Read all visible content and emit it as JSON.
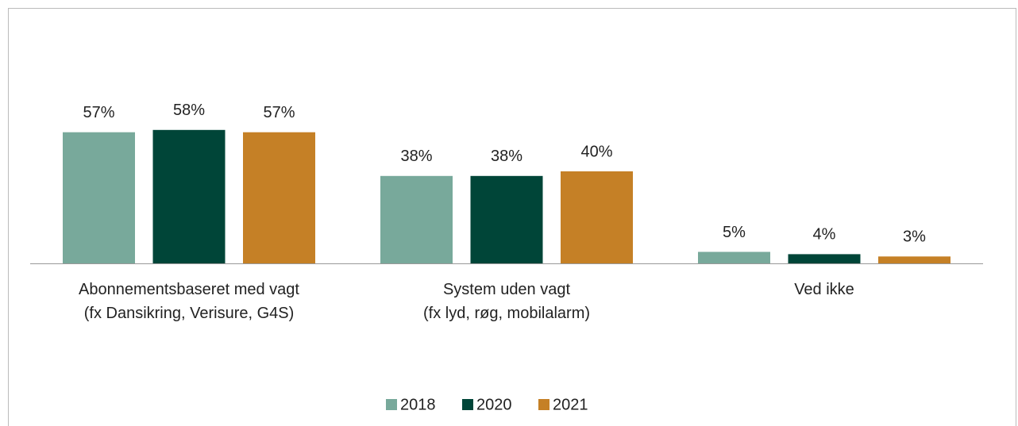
{
  "chart_data": {
    "type": "bar",
    "categories": [
      "Abonnementsbaseret med vagt\n(fx Dansikring, Verisure, G4S)",
      "System uden vagt\n(fx lyd, røg, mobilalarm)",
      "Ved ikke"
    ],
    "series": [
      {
        "name": "2018",
        "color": "#78a99b",
        "values": [
          57,
          38,
          5
        ],
        "value_labels": [
          "57%",
          "38%",
          "5%"
        ]
      },
      {
        "name": "2020",
        "color": "#004538",
        "values": [
          58,
          38,
          4
        ],
        "value_labels": [
          "58%",
          "38%",
          "4%"
        ]
      },
      {
        "name": "2021",
        "color": "#c58026",
        "values": [
          57,
          40,
          3
        ],
        "value_labels": [
          "57%",
          "40%",
          "3%"
        ]
      }
    ]
  }
}
